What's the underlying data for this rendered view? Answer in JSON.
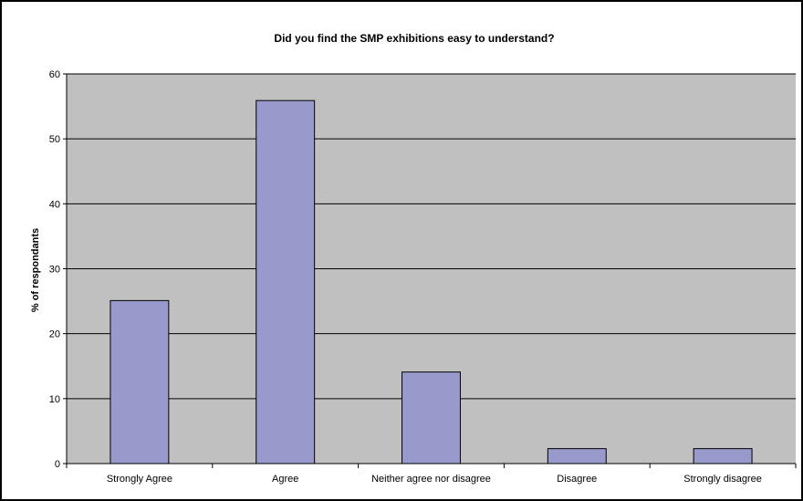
{
  "chart_data": {
    "type": "bar",
    "title": "Did you find the SMP exhibitions easy to understand?",
    "xlabel": "",
    "ylabel": "% of respondants",
    "categories": [
      "Strongly Agree",
      "Agree",
      "Neither agree nor disagree",
      "Disagree",
      "Strongly disagree"
    ],
    "values": [
      25.1,
      55.9,
      14.1,
      2.3,
      2.3
    ],
    "ylim": [
      0,
      60
    ],
    "yticks": [
      0,
      10,
      20,
      30,
      40,
      50,
      60
    ],
    "grid": true,
    "legend": "none",
    "colors": {
      "bar_fill": "#9999CC",
      "plot_background": "#C0C0C0",
      "gridline": "#000000"
    }
  }
}
